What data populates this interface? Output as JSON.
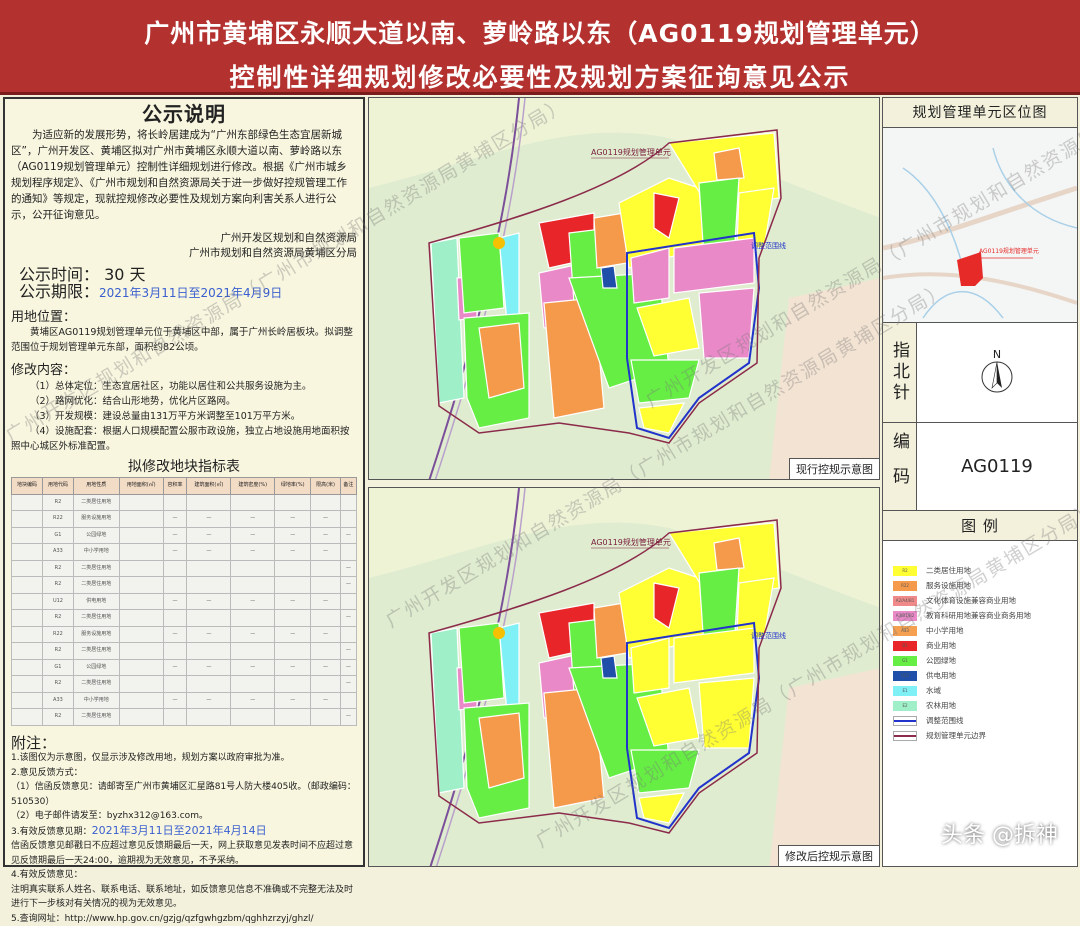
{
  "header": {
    "line1": "广州市黄埔区永顺大道以南、萝岭路以东（AG0119规划管理单元）",
    "line2": "控制性详细规划修改必要性及规划方案征询意见公示"
  },
  "notice": {
    "title": "公示说明",
    "intro": "为适应新的发展形势，将长岭居建成为“广州东部绿色生态宜居新城区”，广州开发区、黄埔区拟对广州市黄埔区永顺大道以南、萝岭路以东（AG0119规划管理单元）控制性详细规划进行修改。根据《广州市城乡规划程序规定》、《广州市规划和自然资源局关于进一步做好控规管理工作的通知》等规定，现就控规修改必要性及规划方案向利害关系人进行公示，公开征询意见。",
    "sign1": "广州开发区规划和自然资源局",
    "sign2": "广州市规划和自然资源局黄埔区分局",
    "time_label": "公示时间：",
    "time_value": "30 天",
    "period_label": "公示期限：",
    "period_value": "2021年3月11日至2021年4月9日",
    "location_title": "用地位置：",
    "location_text": "黄埔区AG0119规划管理单元位于黄埔区中部，属于广州长岭居板块。拟调整范围位于规划管理单元东部，面积约82公顷。",
    "content_title": "修改内容：",
    "content_items": [
      "（1）总体定位：生态宜居社区，功能以居住和公共服务设施为主。",
      "（2）路网优化：结合山形地势，优化片区路网。",
      "（3）开发规模：建设总量由131万平方米调整至101万平方米。",
      "（4）设施配套：根据人口规模配置公服市政设施，独立占地设施用地面积按照中心城区外标准配置。"
    ]
  },
  "table": {
    "title": "拟修改地块指标表",
    "headers": [
      "地块编码",
      "用地代码",
      "用地性质",
      "用地面积(㎡)",
      "容积率",
      "建筑面积(㎡)",
      "建筑密度(%)",
      "绿地率(%)",
      "限高(米)",
      "备注"
    ],
    "rows": [
      [
        "",
        "R2",
        "二类居住用地",
        "",
        "",
        "",
        "",
        "",
        "",
        ""
      ],
      [
        "",
        "R22",
        "服务设施用地",
        "",
        "—",
        "—",
        "—",
        "—",
        "—",
        ""
      ],
      [
        "",
        "G1",
        "公园绿地",
        "",
        "—",
        "—",
        "—",
        "—",
        "—",
        "—"
      ],
      [
        "",
        "A33",
        "中小学用地",
        "",
        "—",
        "—",
        "—",
        "—",
        "—",
        ""
      ],
      [
        "",
        "R2",
        "二类居住用地",
        "",
        "",
        "",
        "",
        "",
        "",
        "—"
      ],
      [
        "",
        "R2",
        "二类居住用地",
        "",
        "",
        "",
        "",
        "",
        "",
        "—"
      ],
      [
        "",
        "U12",
        "供电用地",
        "",
        "—",
        "—",
        "—",
        "—",
        "—",
        ""
      ],
      [
        "",
        "R2",
        "二类居住用地",
        "",
        "",
        "",
        "",
        "",
        "",
        "—"
      ],
      [
        "",
        "R22",
        "服务设施用地",
        "",
        "—",
        "—",
        "—",
        "—",
        "—",
        ""
      ],
      [
        "",
        "R2",
        "二类居住用地",
        "",
        "",
        "",
        "",
        "",
        "",
        "—"
      ],
      [
        "",
        "G1",
        "公园绿地",
        "",
        "—",
        "—",
        "—",
        "—",
        "—",
        "—"
      ],
      [
        "",
        "R2",
        "二类居住用地",
        "",
        "",
        "",
        "",
        "",
        "",
        "—"
      ],
      [
        "",
        "A33",
        "中小学用地",
        "",
        "—",
        "—",
        "—",
        "—",
        "—",
        ""
      ],
      [
        "",
        "R2",
        "二类居住用地",
        "",
        "",
        "",
        "",
        "",
        "",
        "—"
      ]
    ]
  },
  "notes": {
    "title": "附注：",
    "n1": "1.该图仅为示意图，仅显示涉及修改用地，规划方案以政府审批为准。",
    "n2": "2.意见反馈方式：",
    "n2a": "（1）信函反馈意见：请邮寄至广州市黄埔区汇星路81号人防大楼405收。（邮政编码：510530）",
    "n2b": "（2）电子邮件请发至：byzhx312@163.com。",
    "n3_label": "3.有效反馈意见期：",
    "n3_value": "2021年3月11日至2021年4月14日",
    "n3_text": "信函反馈意见邮戳日不应超过意见反馈期最后一天，网上获取意见发表时间不应超过意见反馈期最后一天24:00，逾期视为无效意见，不予采纳。",
    "n4": "4.有效反馈意见：",
    "n4_text": "注明真实联系人姓名、联系电话、联系地址，如反馈意见信息不准确或不完整无法及时进行下一步核对有关情况的视为无效意见。",
    "n5": "5.查询网址：http://www.hp.gov.cn/gzjg/qzfgwhgzbm/qghhzrzyj/ghzl/"
  },
  "maps": {
    "unit_label": "AG0119规划管理单元",
    "adjust_label": "调整范围线",
    "current_caption": "现行控规示意图",
    "revised_caption": "修改后控规示意图"
  },
  "right": {
    "location_title": "规划管理单元区位图",
    "location_unit": "AG0119规划管理单元",
    "compass_label": "指北针",
    "compass_n": "N",
    "code_label": "编码",
    "code_value": "AG0119",
    "legend_title": "图 例",
    "legend": [
      {
        "code": "R2",
        "label": "二类居住用地",
        "color": "#ffff33"
      },
      {
        "code": "R22",
        "label": "服务设施用地",
        "color": "#f59a4b"
      },
      {
        "code": "A2/A4/B1",
        "label": "文化体育设施兼容商业用地",
        "color": "#f08a8a"
      },
      {
        "code": "A3/B1/B2",
        "label": "教育科研用地兼容商业商务用地",
        "color": "#e989c8"
      },
      {
        "code": "A33",
        "label": "中小学用地",
        "color": "#f5a050"
      },
      {
        "code": "B1",
        "label": "商业用地",
        "color": "#e8262a"
      },
      {
        "code": "G1",
        "label": "公园绿地",
        "color": "#66ee44"
      },
      {
        "code": "U12",
        "label": "供电用地",
        "color": "#1f4fa8"
      },
      {
        "code": "E1",
        "label": "水域",
        "color": "#7ff0f5"
      },
      {
        "code": "E2",
        "label": "农林用地",
        "color": "#9ff0c8"
      },
      {
        "code": "",
        "label": "调整范围线",
        "color": "#2233cc"
      },
      {
        "code": "",
        "label": "规划管理单元边界",
        "color": "#8b2a4a"
      }
    ]
  },
  "watermark": "广州开发区规划和自然资源局（广州市规划和自然资源局黄埔区分局）",
  "source_mark": "头条 @拆神"
}
